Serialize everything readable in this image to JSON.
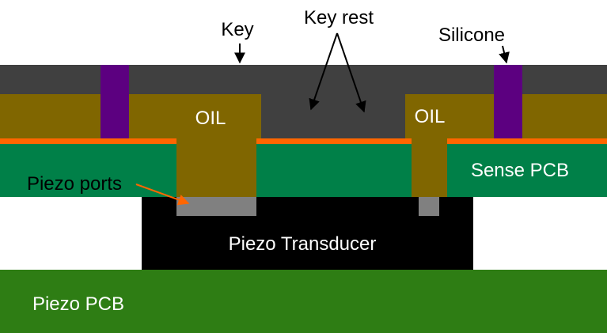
{
  "labels": {
    "key": "Key",
    "key_rest": "Key rest",
    "silicone": "Silicone",
    "oil_left": "OIL",
    "oil_right": "OIL",
    "sense_pcb": "Sense PCB",
    "piezo_ports": "Piezo ports",
    "piezo_transducer": "Piezo Transducer",
    "piezo_pcb": "Piezo PCB"
  },
  "colors": {
    "key": "#404040",
    "oil": "#806600",
    "silicone": "#5c0080",
    "orange_layer": "#ff6600",
    "sense_pcb": "#008048",
    "piezo_port": "#808080",
    "piezo_transducer": "#000000",
    "piezo_pcb": "#2e7d14",
    "silicone_text": "#5c0080",
    "arrow": "#000000",
    "ports_arrow": "#ff6600"
  }
}
